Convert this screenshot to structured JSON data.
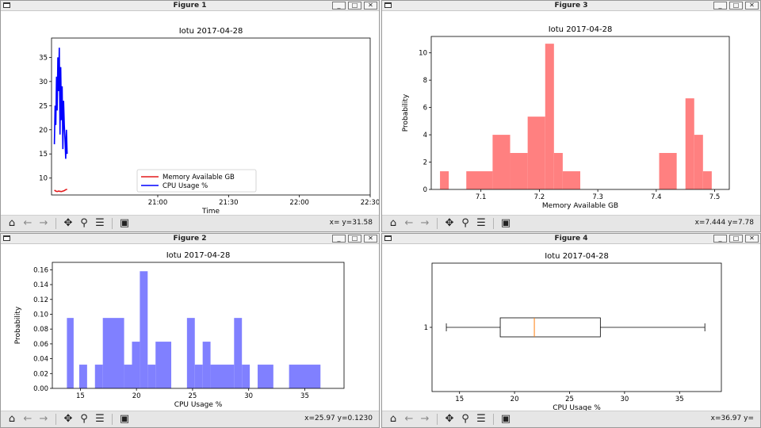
{
  "windows": {
    "fig1": {
      "title": "Figure 1",
      "coords": "x= y=31.58",
      "chart": {
        "type": "line",
        "title": "Iotu 2017-04-28",
        "xlabel": "Time",
        "ylabel": "",
        "x_ticks": [
          "21:00",
          "21:30",
          "22:00",
          "22:30"
        ],
        "y_ticks": [
          "10",
          "15",
          "20",
          "25",
          "30",
          "35"
        ]
      }
    },
    "fig2": {
      "title": "Figure 2",
      "coords": "x=25.97 y=0.1230",
      "chart": {
        "type": "bar",
        "title": "Iotu 2017-04-28",
        "xlabel": "CPU Usage %",
        "ylabel": "Probability",
        "x_ticks": [
          "15",
          "20",
          "25",
          "30",
          "35"
        ],
        "y_ticks": [
          "0.00",
          "0.02",
          "0.04",
          "0.06",
          "0.08",
          "0.10",
          "0.12",
          "0.14",
          "0.16"
        ]
      }
    },
    "fig3": {
      "title": "Figure 3",
      "coords": "x=7.444 y=7.78",
      "chart": {
        "type": "bar",
        "title": "Iotu 2017-04-28",
        "xlabel": "Memory Available GB",
        "ylabel": "Probability",
        "x_ticks": [
          "7.1",
          "7.2",
          "7.3",
          "7.4",
          "7.5"
        ],
        "y_ticks": [
          "0",
          "2",
          "4",
          "6",
          "8",
          "10"
        ]
      }
    },
    "fig4": {
      "title": "Figure 4",
      "coords": "x=36.97 y=",
      "chart": {
        "type": "box",
        "title": "Iotu 2017-04-28",
        "xlabel": "CPU Usage %",
        "ylabel": "",
        "x_ticks": [
          "15",
          "20",
          "25",
          "30",
          "35"
        ],
        "y_ticks": [
          "1"
        ]
      }
    }
  },
  "window_buttons": {
    "minimize": "_",
    "maximize": "□",
    "close": "✕"
  },
  "toolbar_icons": [
    "home-icon",
    "back-arrow-icon",
    "forward-arrow-icon",
    "pan-icon",
    "zoom-icon",
    "configure-icon",
    "save-icon"
  ],
  "toolbar_glyphs": {
    "home": "⌂",
    "back": "←",
    "forward": "→",
    "pan": "✥",
    "zoom": "⚲",
    "config": "☰",
    "save": "▣"
  },
  "colors": {
    "memory": "#e41a1c",
    "cpu": "#0000ff",
    "hist_cpu": "#8080ff",
    "hist_mem": "#ff8080",
    "median": "#ff7f0e"
  },
  "chart_data": [
    {
      "type": "line",
      "title": "Iotu 2017-04-28",
      "xlabel": "Time",
      "x_ticks": [
        "21:00",
        "21:30",
        "22:00",
        "22:30"
      ],
      "xlim_minutes": [
        20.25,
        22.5
      ],
      "ylim": [
        6.5,
        39
      ],
      "series": [
        {
          "name": "Memory Available GB",
          "x_minutes": [
            20.27,
            20.28,
            20.29,
            20.3,
            20.31,
            20.32,
            20.33,
            20.34,
            20.35,
            20.36
          ],
          "values": [
            7.5,
            7.3,
            7.2,
            7.3,
            7.25,
            7.2,
            7.3,
            7.4,
            7.6,
            7.7
          ]
        },
        {
          "name": "CPU Usage %",
          "x_minutes": [
            20.27,
            20.275,
            20.28,
            20.285,
            20.29,
            20.295,
            20.3,
            20.305,
            20.31,
            20.315,
            20.32,
            20.325,
            20.33,
            20.335,
            20.34,
            20.345,
            20.35,
            20.355,
            20.36
          ],
          "values": [
            17,
            25,
            21,
            31,
            24,
            35,
            28,
            37,
            19,
            33,
            22,
            29,
            16,
            26,
            21,
            18,
            14,
            20,
            15
          ]
        }
      ]
    },
    {
      "type": "bar",
      "title": "Iotu 2017-04-28",
      "xlabel": "CPU Usage %",
      "ylabel": "Probability",
      "xlim": [
        12.5,
        38.5
      ],
      "ylim": [
        0,
        0.17
      ],
      "bins": [
        {
          "x0": 13.8,
          "x1": 14.4,
          "value": 0.095
        },
        {
          "x0": 14.9,
          "x1": 15.6,
          "value": 0.032
        },
        {
          "x0": 16.3,
          "x1": 17.0,
          "value": 0.032
        },
        {
          "x0": 17.0,
          "x1": 18.9,
          "value": 0.095
        },
        {
          "x0": 18.9,
          "x1": 19.6,
          "value": 0.032
        },
        {
          "x0": 19.6,
          "x1": 20.3,
          "value": 0.063
        },
        {
          "x0": 20.3,
          "x1": 21.0,
          "value": 0.158
        },
        {
          "x0": 21.0,
          "x1": 21.7,
          "value": 0.032
        },
        {
          "x0": 21.7,
          "x1": 23.1,
          "value": 0.063
        },
        {
          "x0": 24.5,
          "x1": 25.2,
          "value": 0.095
        },
        {
          "x0": 25.2,
          "x1": 25.9,
          "value": 0.032
        },
        {
          "x0": 25.9,
          "x1": 26.6,
          "value": 0.063
        },
        {
          "x0": 26.6,
          "x1": 28.7,
          "value": 0.032
        },
        {
          "x0": 28.7,
          "x1": 29.4,
          "value": 0.095
        },
        {
          "x0": 29.4,
          "x1": 30.1,
          "value": 0.032
        },
        {
          "x0": 30.8,
          "x1": 32.2,
          "value": 0.032
        },
        {
          "x0": 33.6,
          "x1": 36.4,
          "value": 0.032
        },
        {
          "x0": 36.4,
          "x1": 37.1,
          "value": 0.0
        }
      ]
    },
    {
      "type": "bar",
      "title": "Iotu 2017-04-28",
      "xlabel": "Memory Available GB",
      "ylabel": "Probability",
      "xlim": [
        7.015,
        7.525
      ],
      "ylim": [
        0,
        11.2
      ],
      "bins": [
        {
          "x0": 7.03,
          "x1": 7.045,
          "value": 1.33
        },
        {
          "x0": 7.075,
          "x1": 7.12,
          "value": 1.33
        },
        {
          "x0": 7.12,
          "x1": 7.15,
          "value": 4.0
        },
        {
          "x0": 7.15,
          "x1": 7.18,
          "value": 2.67
        },
        {
          "x0": 7.18,
          "x1": 7.21,
          "value": 5.33
        },
        {
          "x0": 7.21,
          "x1": 7.225,
          "value": 10.67
        },
        {
          "x0": 7.225,
          "x1": 7.24,
          "value": 2.67
        },
        {
          "x0": 7.24,
          "x1": 7.27,
          "value": 1.33
        },
        {
          "x0": 7.405,
          "x1": 7.435,
          "value": 2.67
        },
        {
          "x0": 7.45,
          "x1": 7.465,
          "value": 6.67
        },
        {
          "x0": 7.465,
          "x1": 7.48,
          "value": 4.0
        },
        {
          "x0": 7.48,
          "x1": 7.495,
          "value": 1.33
        }
      ]
    },
    {
      "type": "box",
      "title": "Iotu 2017-04-28",
      "xlabel": "CPU Usage %",
      "xlim": [
        12.5,
        38.8
      ],
      "categories": [
        "1"
      ],
      "whisker_low": 13.8,
      "q1": 18.7,
      "median": 21.8,
      "q3": 27.8,
      "whisker_high": 37.3
    }
  ]
}
